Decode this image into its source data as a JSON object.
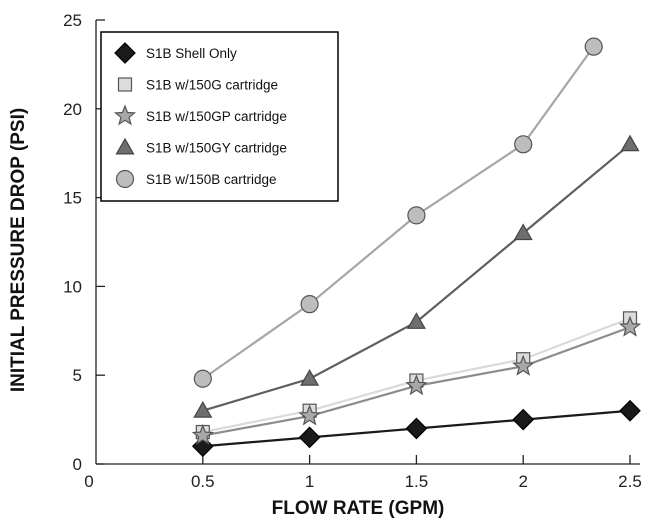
{
  "chart_data": {
    "type": "line",
    "xlabel": "FLOW RATE (GPM)",
    "ylabel": "INITIAL PRESSURE DROP (PSI)",
    "xlim": [
      0,
      2.5
    ],
    "ylim": [
      0,
      25
    ],
    "xticks": [
      "0",
      "0.5",
      "1",
      "1.5",
      "2",
      "2.5"
    ],
    "yticks": [
      "0",
      "5",
      "10",
      "15",
      "20",
      "25"
    ],
    "grid": false,
    "legend_position": "top-left",
    "series": [
      {
        "name": "S1B Shell Only",
        "marker": "diamond",
        "line_color": "#1a1a1a",
        "marker_fill": "#1a1a1a",
        "marker_stroke": "#000000",
        "x": [
          0.5,
          1,
          1.5,
          2,
          2.5
        ],
        "y": [
          1.0,
          1.5,
          2.0,
          2.5,
          3.0
        ]
      },
      {
        "name": "S1B w/150G cartridge",
        "marker": "square",
        "line_color": "#d9d9d9",
        "marker_fill": "#dcdcdc",
        "marker_stroke": "#555555",
        "x": [
          0.5,
          1,
          1.5,
          2,
          2.5
        ],
        "y": [
          1.8,
          3.0,
          4.7,
          5.9,
          8.2
        ]
      },
      {
        "name": "S1B w/150GP cartridge",
        "marker": "star",
        "line_color": "#8c8c8c",
        "marker_fill": "#a8a8a8",
        "marker_stroke": "#555555",
        "x": [
          0.5,
          1,
          1.5,
          2,
          2.5
        ],
        "y": [
          1.6,
          2.7,
          4.4,
          5.5,
          7.7
        ]
      },
      {
        "name": "S1B w/150GY cartridge",
        "marker": "triangle",
        "line_color": "#5f5f5f",
        "marker_fill": "#6e6e6e",
        "marker_stroke": "#444444",
        "x": [
          0.5,
          1,
          1.5,
          2,
          2.5
        ],
        "y": [
          3.0,
          4.8,
          8.0,
          13.0,
          18.0
        ]
      },
      {
        "name": "S1B w/150B cartridge",
        "marker": "circle",
        "line_color": "#a6a6a6",
        "marker_fill": "#bdbdbd",
        "marker_stroke": "#555555",
        "x": [
          0.5,
          1,
          1.5,
          2,
          2.33
        ],
        "y": [
          4.8,
          9.0,
          14.0,
          18.0,
          23.5
        ]
      }
    ]
  }
}
